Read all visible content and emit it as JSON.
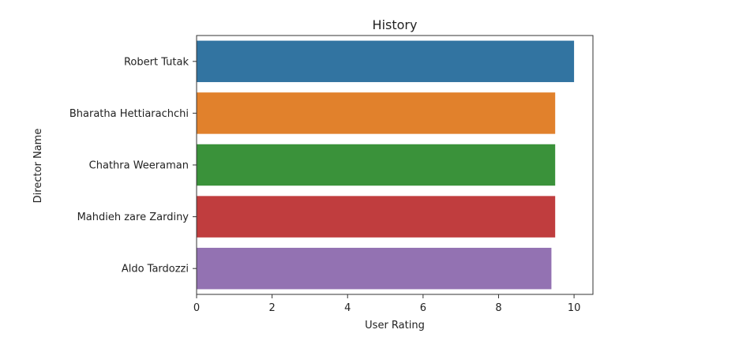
{
  "chart_data": {
    "type": "bar",
    "orientation": "horizontal",
    "title": "History",
    "xlabel": "User Rating",
    "ylabel": "Director Name",
    "xlim": [
      0,
      10.5
    ],
    "xticks": [
      0,
      2,
      4,
      6,
      8,
      10
    ],
    "grid": false,
    "legend": "none",
    "categories": [
      "Robert Tutak",
      "Bharatha Hettiarachchi",
      "Chathra Weeraman",
      "Mahdieh zare Zardiny",
      "Aldo Tardozzi"
    ],
    "values": [
      10.0,
      9.5,
      9.5,
      9.5,
      9.4
    ],
    "colors": [
      "#3274a1",
      "#e1812c",
      "#3a923a",
      "#c03d3e",
      "#9372b2"
    ]
  }
}
